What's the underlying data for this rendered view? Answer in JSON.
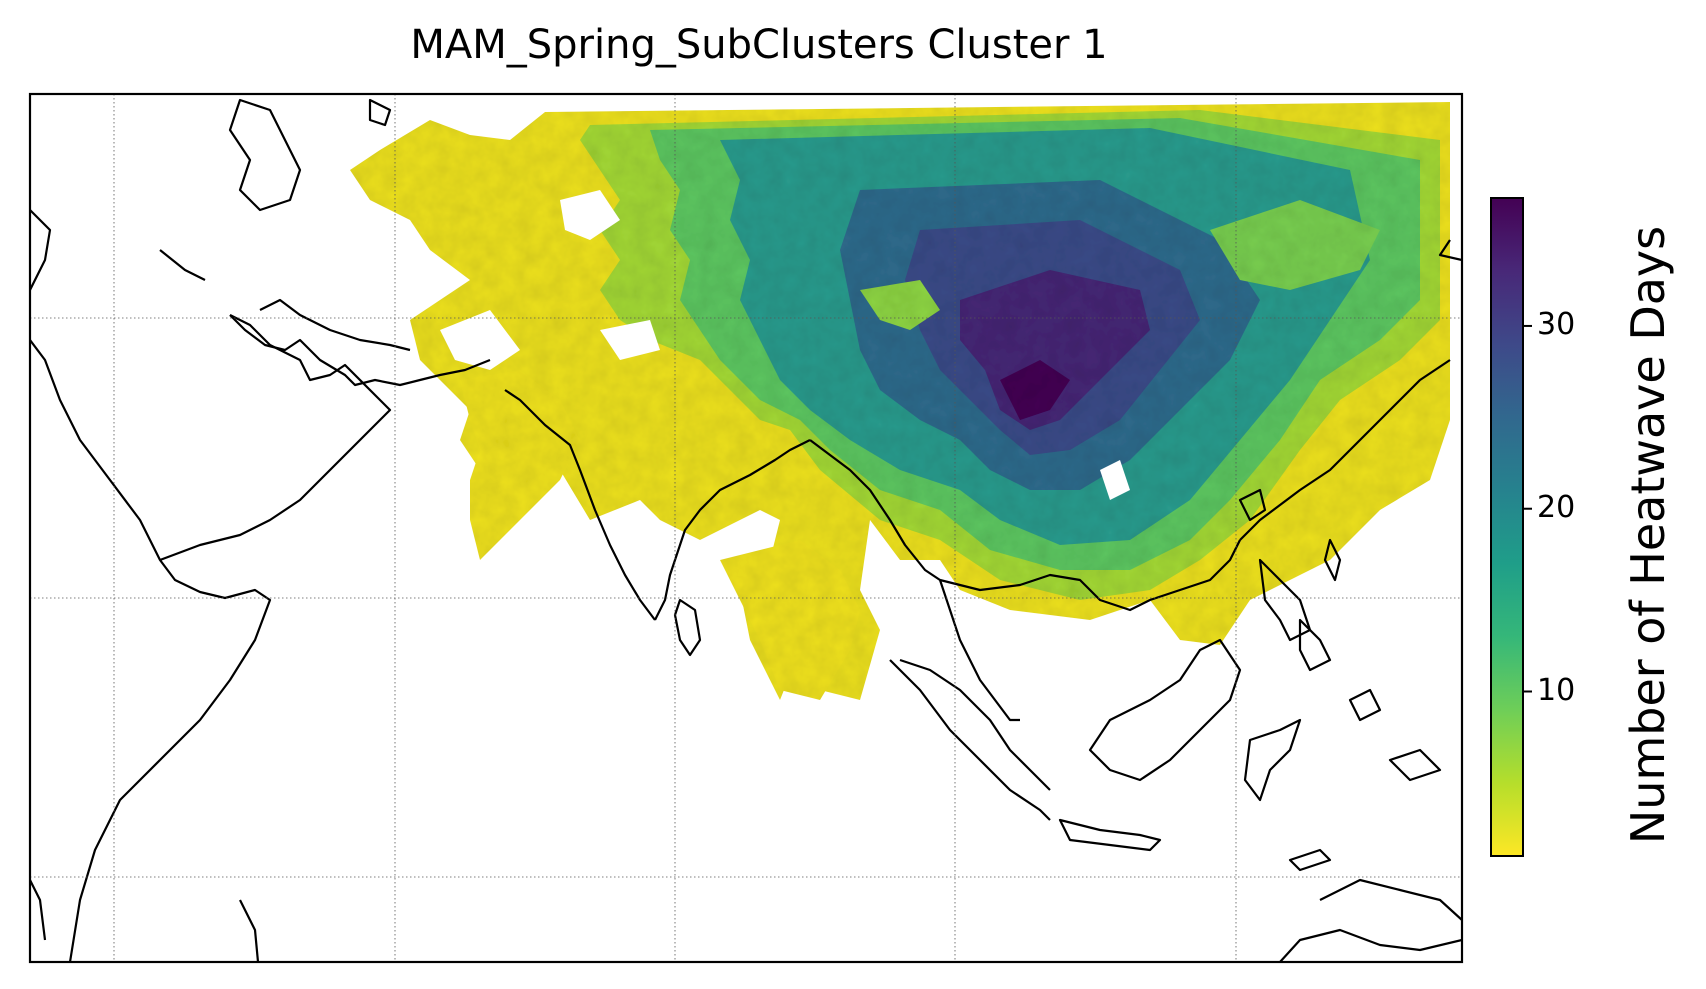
{
  "title": "MAM_Spring_SubClusters Cluster 1",
  "colorbar": {
    "label": "Number of Heatwave Days",
    "min": 1,
    "max": 37,
    "ticks": [
      10,
      20,
      30
    ],
    "colormap": "viridis_r",
    "colors": [
      "#fde725",
      "#b5de2b",
      "#6ece58",
      "#35b779",
      "#1f9e89",
      "#26828e",
      "#31688e",
      "#3e4989",
      "#482878",
      "#440154"
    ]
  },
  "map": {
    "projection": "PlateCarree",
    "coastlines": true,
    "gridlines": "dotted",
    "background": "#ffffff"
  }
}
